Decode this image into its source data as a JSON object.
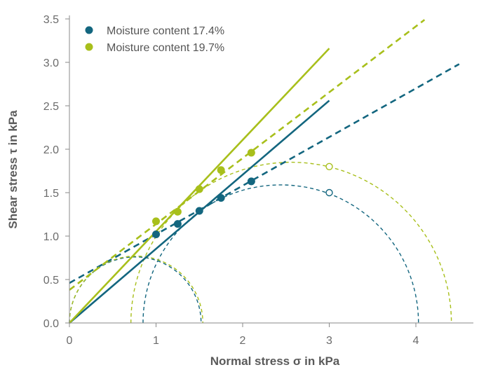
{
  "chart_data": {
    "type": "scatter",
    "title": "",
    "xlabel": "Normal stress σ in kPa",
    "ylabel": "Shear stress τ in kPa",
    "xlim": [
      0,
      4.7
    ],
    "ylim": [
      0,
      3.55
    ],
    "x_ticks": [
      0,
      1,
      2,
      3,
      4
    ],
    "y_ticks": [
      0.0,
      0.5,
      1.0,
      1.5,
      2.0,
      2.5,
      3.0,
      3.5
    ],
    "x_tick_labels": [
      "0",
      "1",
      "2",
      "3",
      "4"
    ],
    "y_tick_labels": [
      "0.0",
      "0.5",
      "1.0",
      "1.5",
      "2.0",
      "2.5",
      "3.0",
      "3.5"
    ],
    "grid": false,
    "legend_position": "top-left",
    "series": [
      {
        "name": "Moisture content 17.4%",
        "color": "#13667f",
        "points": [
          {
            "x": 1.0,
            "y": 1.02
          },
          {
            "x": 1.25,
            "y": 1.14
          },
          {
            "x": 1.5,
            "y": 1.29
          },
          {
            "x": 1.75,
            "y": 1.44
          },
          {
            "x": 2.1,
            "y": 1.63
          }
        ],
        "open_point": {
          "x": 3.0,
          "y": 1.5
        },
        "solid_line": [
          {
            "x": 0,
            "y": 0
          },
          {
            "x": 3.0,
            "y": 2.56
          }
        ],
        "dashed_line": [
          {
            "x": 0,
            "y": 0.46
          },
          {
            "x": 4.5,
            "y": 2.98
          }
        ],
        "mohr_circles": [
          {
            "center": 0.76,
            "radius": 0.76
          },
          {
            "center": 2.44,
            "radius": 1.59
          }
        ]
      },
      {
        "name": "Moisture content 19.7%",
        "color": "#a8bf1b",
        "points": [
          {
            "x": 1.0,
            "y": 1.17
          },
          {
            "x": 1.25,
            "y": 1.28
          },
          {
            "x": 1.5,
            "y": 1.54
          },
          {
            "x": 1.75,
            "y": 1.76
          },
          {
            "x": 2.1,
            "y": 1.96
          }
        ],
        "open_point": {
          "x": 3.0,
          "y": 1.8
        },
        "solid_line": [
          {
            "x": 0,
            "y": 0
          },
          {
            "x": 3.0,
            "y": 3.16
          }
        ],
        "dashed_line": [
          {
            "x": 0,
            "y": 0.38
          },
          {
            "x": 4.1,
            "y": 3.49
          }
        ],
        "mohr_circles": [
          {
            "center": 0.77,
            "radius": 0.77
          },
          {
            "center": 2.56,
            "radius": 1.85
          }
        ]
      }
    ]
  }
}
